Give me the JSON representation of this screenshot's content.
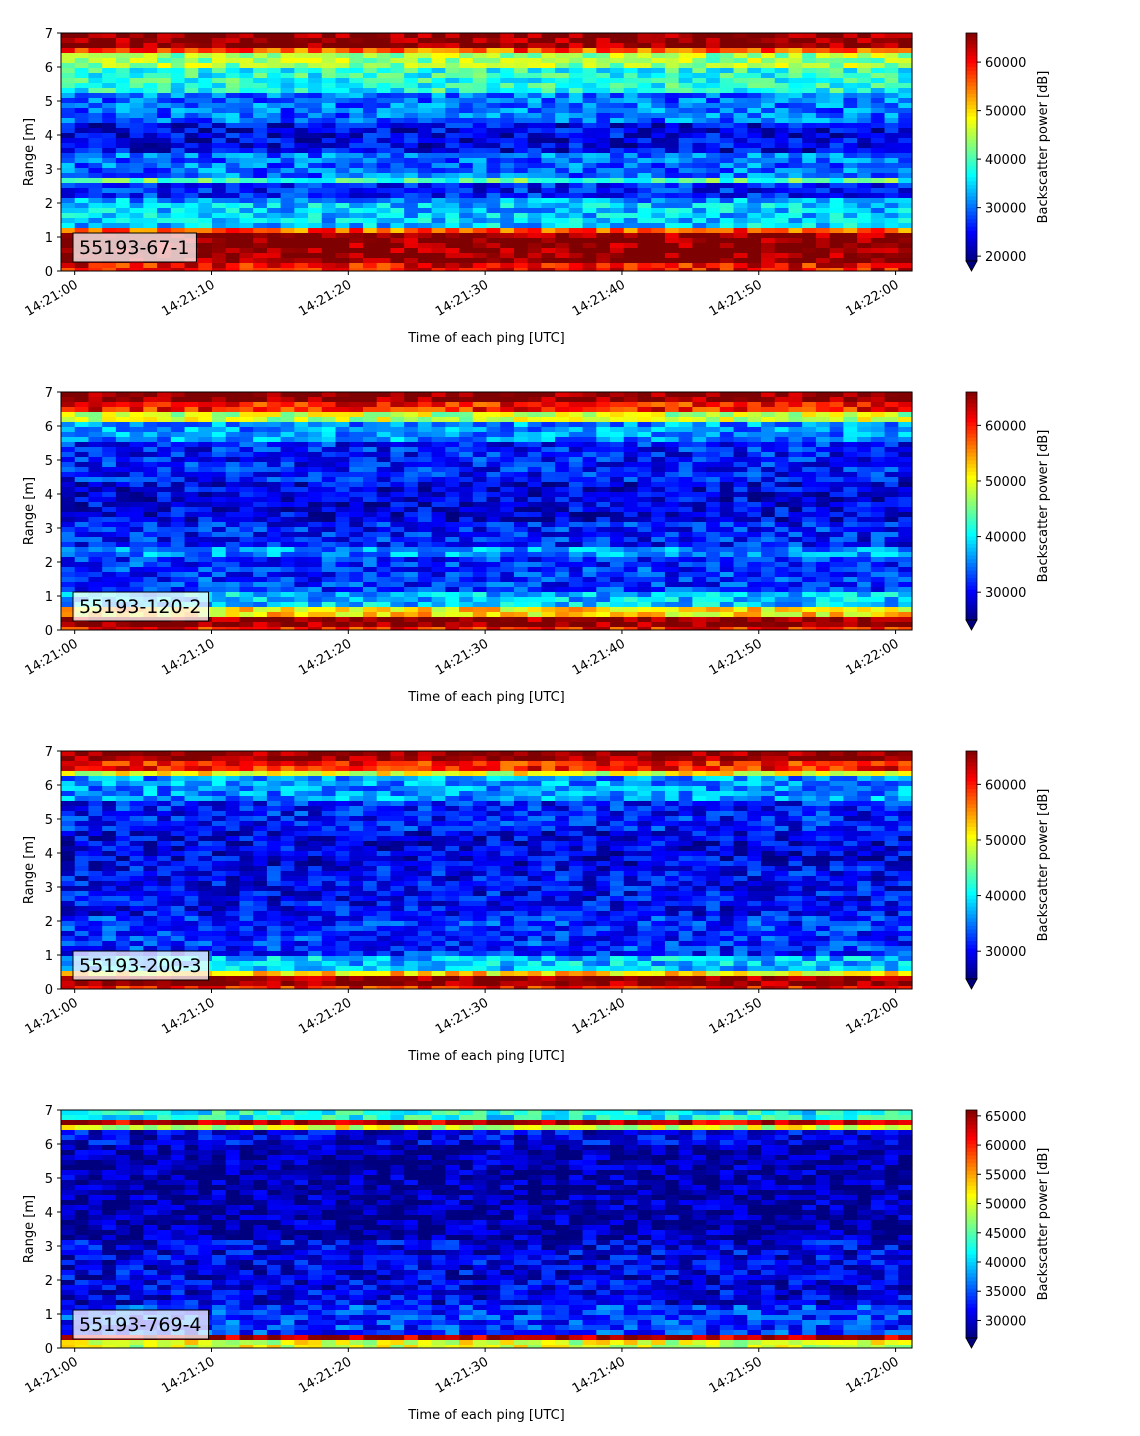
{
  "colors": {
    "jet": [
      "#00007f",
      "#0000ff",
      "#007fff",
      "#00ffff",
      "#7fff7f",
      "#ffff00",
      "#ff7f00",
      "#ff0000",
      "#7f0000"
    ],
    "label_box": "#ffffff",
    "axis": "#000000"
  },
  "colormap": "jet",
  "chart_data": [
    {
      "type": "heatmap",
      "label": "55193-67-1",
      "xlabel": "Time of each ping [UTC]",
      "ylabel": "Range [m]",
      "colorbar_label": "Backscatter power [dB]",
      "x_ticks": [
        "14:21:00",
        "14:21:10",
        "14:21:20",
        "14:21:30",
        "14:21:40",
        "14:21:50",
        "14:22:00"
      ],
      "y_ticks": [
        "0",
        "1",
        "2",
        "3",
        "4",
        "5",
        "6",
        "7"
      ],
      "ylim": [
        0,
        7
      ],
      "x_range_s": [
        -1,
        61.2
      ],
      "colorbar_ticks": [
        "20000",
        "30000",
        "40000",
        "50000",
        "60000"
      ],
      "clim": [
        19000,
        66000
      ],
      "bands": [
        {
          "y0": 0.0,
          "y1": 0.22,
          "v": 60000
        },
        {
          "y0": 0.22,
          "y1": 1.05,
          "v": 66000
        },
        {
          "y0": 1.05,
          "y1": 1.3,
          "v": 56000
        },
        {
          "y0": 1.3,
          "y1": 2.0,
          "v": 34000
        },
        {
          "y0": 2.0,
          "y1": 2.2,
          "v": 32000
        },
        {
          "y0": 2.2,
          "y1": 2.55,
          "v": 26000
        },
        {
          "y0": 2.55,
          "y1": 2.8,
          "v": 40000
        },
        {
          "y0": 2.8,
          "y1": 3.4,
          "v": 30000
        },
        {
          "y0": 3.4,
          "y1": 4.4,
          "v": 24000
        },
        {
          "y0": 4.4,
          "y1": 5.2,
          "v": 30000
        },
        {
          "y0": 5.2,
          "y1": 5.9,
          "v": 38000
        },
        {
          "y0": 5.9,
          "y1": 6.35,
          "v": 44000
        },
        {
          "y0": 6.35,
          "y1": 6.6,
          "v": 56000
        },
        {
          "y0": 6.6,
          "y1": 7.0,
          "v": 66000
        }
      ]
    },
    {
      "type": "heatmap",
      "label": "55193-120-2",
      "xlabel": "Time of each ping [UTC]",
      "ylabel": "Range [m]",
      "colorbar_label": "Backscatter power [dB]",
      "x_ticks": [
        "14:21:00",
        "14:21:10",
        "14:21:20",
        "14:21:30",
        "14:21:40",
        "14:21:50",
        "14:22:00"
      ],
      "y_ticks": [
        "0",
        "1",
        "2",
        "3",
        "4",
        "5",
        "6",
        "7"
      ],
      "ylim": [
        0,
        7
      ],
      "x_range_s": [
        -1,
        61.2
      ],
      "colorbar_ticks": [
        "30000",
        "40000",
        "50000",
        "60000"
      ],
      "clim": [
        25000,
        66000
      ],
      "bands": [
        {
          "y0": 0.0,
          "y1": 0.15,
          "v": 60000
        },
        {
          "y0": 0.15,
          "y1": 0.45,
          "v": 66000
        },
        {
          "y0": 0.45,
          "y1": 0.65,
          "v": 52000
        },
        {
          "y0": 0.65,
          "y1": 1.1,
          "v": 38000
        },
        {
          "y0": 1.1,
          "y1": 2.2,
          "v": 32000
        },
        {
          "y0": 2.2,
          "y1": 2.5,
          "v": 36000
        },
        {
          "y0": 2.5,
          "y1": 3.2,
          "v": 31000
        },
        {
          "y0": 3.2,
          "y1": 4.4,
          "v": 29000
        },
        {
          "y0": 4.4,
          "y1": 5.5,
          "v": 31000
        },
        {
          "y0": 5.5,
          "y1": 6.1,
          "v": 36000
        },
        {
          "y0": 6.1,
          "y1": 6.4,
          "v": 48000
        },
        {
          "y0": 6.4,
          "y1": 6.65,
          "v": 60000
        },
        {
          "y0": 6.65,
          "y1": 7.0,
          "v": 66000
        }
      ]
    },
    {
      "type": "heatmap",
      "label": "55193-200-3",
      "xlabel": "Time of each ping [UTC]",
      "ylabel": "Range [m]",
      "colorbar_label": "Backscatter power [dB]",
      "x_ticks": [
        "14:21:00",
        "14:21:10",
        "14:21:20",
        "14:21:30",
        "14:21:40",
        "14:21:50",
        "14:22:00"
      ],
      "y_ticks": [
        "0",
        "1",
        "2",
        "3",
        "4",
        "5",
        "6",
        "7"
      ],
      "ylim": [
        0,
        7
      ],
      "x_range_s": [
        -1,
        61.2
      ],
      "colorbar_ticks": [
        "30000",
        "40000",
        "50000",
        "60000"
      ],
      "clim": [
        25000,
        66000
      ],
      "bands": [
        {
          "y0": 0.0,
          "y1": 0.15,
          "v": 60000
        },
        {
          "y0": 0.15,
          "y1": 0.38,
          "v": 66000
        },
        {
          "y0": 0.38,
          "y1": 0.55,
          "v": 52000
        },
        {
          "y0": 0.55,
          "y1": 0.9,
          "v": 38000
        },
        {
          "y0": 0.9,
          "y1": 2.2,
          "v": 32000
        },
        {
          "y0": 2.2,
          "y1": 3.6,
          "v": 30000
        },
        {
          "y0": 3.6,
          "y1": 4.6,
          "v": 29000
        },
        {
          "y0": 4.6,
          "y1": 5.6,
          "v": 31000
        },
        {
          "y0": 5.6,
          "y1": 6.2,
          "v": 36000
        },
        {
          "y0": 6.2,
          "y1": 6.45,
          "v": 50000
        },
        {
          "y0": 6.45,
          "y1": 6.7,
          "v": 60000
        },
        {
          "y0": 6.7,
          "y1": 7.0,
          "v": 66000
        }
      ]
    },
    {
      "type": "heatmap",
      "label": "55193-769-4",
      "xlabel": "Time of each ping [UTC]",
      "ylabel": "Range [m]",
      "colorbar_label": "Backscatter power [dB]",
      "x_ticks": [
        "14:21:00",
        "14:21:10",
        "14:21:20",
        "14:21:30",
        "14:21:40",
        "14:21:50",
        "14:22:00"
      ],
      "y_ticks": [
        "0",
        "1",
        "2",
        "3",
        "4",
        "5",
        "6",
        "7"
      ],
      "ylim": [
        0,
        7
      ],
      "x_range_s": [
        -1,
        61.2
      ],
      "colorbar_ticks": [
        "30000",
        "35000",
        "40000",
        "45000",
        "50000",
        "55000",
        "60000",
        "65000"
      ],
      "clim": [
        27000,
        66000
      ],
      "bands": [
        {
          "y0": 0.0,
          "y1": 0.2,
          "v": 50000
        },
        {
          "y0": 0.2,
          "y1": 0.32,
          "v": 64000
        },
        {
          "y0": 0.32,
          "y1": 0.45,
          "v": 44000
        },
        {
          "y0": 0.45,
          "y1": 1.3,
          "v": 34000
        },
        {
          "y0": 1.3,
          "y1": 3.2,
          "v": 31000
        },
        {
          "y0": 3.2,
          "y1": 6.0,
          "v": 28500
        },
        {
          "y0": 6.0,
          "y1": 6.4,
          "v": 31000
        },
        {
          "y0": 6.4,
          "y1": 6.55,
          "v": 50000
        },
        {
          "y0": 6.55,
          "y1": 6.75,
          "v": 64000
        },
        {
          "y0": 6.75,
          "y1": 7.0,
          "v": 42000
        }
      ]
    }
  ]
}
